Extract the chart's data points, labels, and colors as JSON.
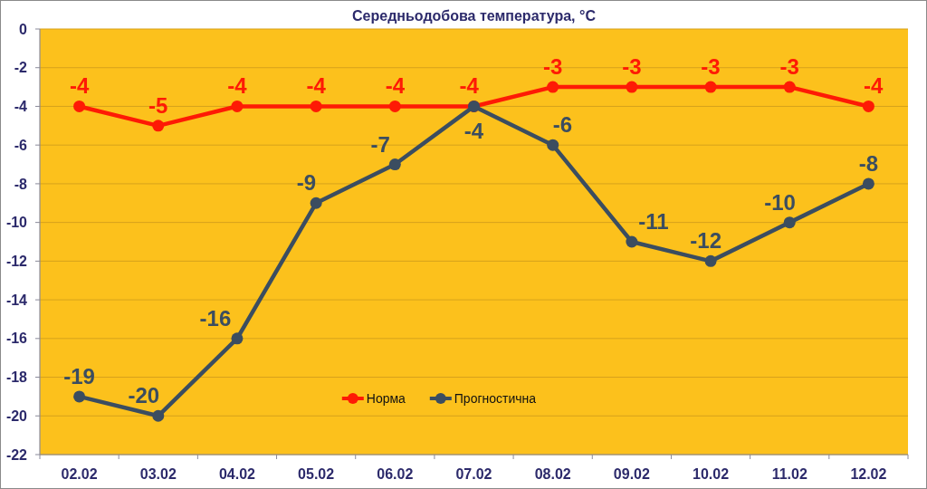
{
  "chart_data": {
    "type": "line",
    "title": "Середньодобова температура, °C",
    "categories": [
      "02.02",
      "03.02",
      "04.02",
      "05.02",
      "06.02",
      "07.02",
      "08.02",
      "09.02",
      "10.02",
      "11.02",
      "12.02"
    ],
    "series": [
      {
        "name": "Норма",
        "color": "#fe1a05",
        "values": [
          -4,
          -5,
          -4,
          -4,
          -4,
          -4,
          -3,
          -3,
          -3,
          -3,
          -4
        ]
      },
      {
        "name": "Прогностична",
        "color": "#3b4d60",
        "values": [
          -19,
          -20,
          -16,
          -9,
          -7,
          -4,
          -6,
          -11,
          -12,
          -10,
          -8
        ]
      }
    ],
    "ylim": [
      -22,
      0
    ],
    "yticks": [
      0,
      -2,
      -4,
      -6,
      -8,
      -10,
      -12,
      -14,
      -16,
      -18,
      -20,
      -22
    ],
    "grid": true,
    "legend": "bottom",
    "marker": "circle",
    "line_style": "solid",
    "data_labels": true
  }
}
